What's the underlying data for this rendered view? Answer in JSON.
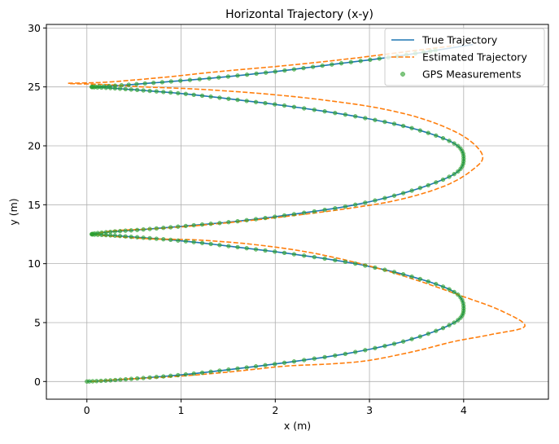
{
  "chart_data": {
    "type": "line",
    "title": "Horizontal Trajectory (x-y)",
    "xlabel": "x (m)",
    "ylabel": "y (m)",
    "xlim": [
      -0.43,
      4.9
    ],
    "ylim": [
      -1.5,
      30.3
    ],
    "xticks": [
      0,
      1,
      2,
      3,
      4
    ],
    "yticks": [
      0,
      5,
      10,
      15,
      20,
      25,
      30
    ],
    "grid": true,
    "legend_position": "top-right",
    "series": [
      {
        "name": "True Trajectory",
        "style": "solid",
        "color": "#1f77b4",
        "x": [
          0.0,
          0.25,
          0.6,
          1.05,
          1.6,
          2.2,
          2.85,
          3.45,
          3.9,
          4.0,
          3.9,
          3.45,
          2.85,
          2.2,
          1.6,
          1.05,
          0.6,
          0.25,
          0.05,
          0.25,
          0.6,
          1.05,
          1.6,
          2.2,
          2.85,
          3.45,
          3.9,
          4.0,
          3.9,
          3.45,
          2.85,
          2.2,
          1.6,
          1.05,
          0.6,
          0.25,
          0.05,
          0.3,
          0.8,
          1.4,
          2.0,
          2.6,
          3.2,
          3.7,
          4.1
        ],
        "y": [
          0.0,
          0.1,
          0.3,
          0.6,
          1.1,
          1.7,
          2.5,
          3.6,
          5.0,
          6.2,
          7.6,
          8.9,
          10.0,
          10.8,
          11.4,
          11.9,
          12.2,
          12.4,
          12.5,
          12.7,
          12.9,
          13.2,
          13.6,
          14.2,
          15.0,
          16.2,
          17.6,
          18.9,
          20.2,
          21.5,
          22.5,
          23.3,
          23.9,
          24.4,
          24.7,
          24.9,
          25.0,
          25.1,
          25.4,
          25.8,
          26.3,
          26.9,
          27.5,
          28.1,
          28.6
        ]
      },
      {
        "name": "Estimated Trajectory",
        "style": "dashed",
        "color": "#ff7f0e",
        "x": [
          0.05,
          0.4,
          0.9,
          1.5,
          2.1,
          2.6,
          3.0,
          3.5,
          3.9,
          4.3,
          4.65,
          4.4,
          4.0,
          3.5,
          3.0,
          2.4,
          1.8,
          1.2,
          0.7,
          0.3,
          0.1,
          0.3,
          0.8,
          1.4,
          2.0,
          2.7,
          3.3,
          3.8,
          4.1,
          4.2,
          4.0,
          3.6,
          3.1,
          2.5,
          1.9,
          1.2,
          0.6,
          0.2,
          -0.2,
          0.2,
          0.8,
          1.4,
          2.1,
          2.8,
          3.4,
          3.9
        ],
        "y": [
          0.0,
          0.2,
          0.4,
          0.8,
          1.3,
          1.5,
          1.8,
          2.6,
          3.4,
          4.0,
          4.7,
          6.0,
          7.2,
          8.6,
          9.8,
          10.9,
          11.6,
          12.0,
          12.1,
          12.3,
          12.5,
          12.8,
          13.0,
          13.4,
          13.9,
          14.6,
          15.4,
          16.6,
          18.0,
          19.2,
          20.8,
          22.2,
          23.2,
          23.9,
          24.4,
          24.8,
          25.0,
          25.2,
          25.3,
          25.4,
          25.8,
          26.3,
          26.8,
          27.4,
          28.0,
          28.5
        ]
      },
      {
        "name": "GPS Measurements",
        "style": "markers",
        "color": "#2ca02c",
        "x": [
          0.0,
          0.25,
          0.6,
          1.05,
          1.6,
          2.2,
          2.85,
          3.45,
          3.9,
          4.0,
          3.9,
          3.45,
          2.85,
          2.2,
          1.6,
          1.05,
          0.6,
          0.25,
          0.05,
          0.25,
          0.6,
          1.05,
          1.6,
          2.2,
          2.85,
          3.45,
          3.9,
          4.0,
          3.9,
          3.45,
          2.85,
          2.2,
          1.6,
          1.05,
          0.6,
          0.25,
          0.05,
          0.3,
          0.8,
          1.4,
          2.0,
          2.6,
          3.2,
          3.7
        ],
        "y": [
          0.0,
          0.1,
          0.3,
          0.6,
          1.1,
          1.7,
          2.5,
          3.6,
          5.0,
          6.2,
          7.6,
          8.9,
          10.0,
          10.8,
          11.4,
          11.9,
          12.2,
          12.4,
          12.5,
          12.7,
          12.9,
          13.2,
          13.6,
          14.2,
          15.0,
          16.2,
          17.6,
          18.9,
          20.2,
          21.5,
          22.5,
          23.3,
          23.9,
          24.4,
          24.7,
          24.9,
          25.0,
          25.1,
          25.4,
          25.8,
          26.3,
          26.9,
          27.5,
          28.1
        ]
      }
    ]
  }
}
